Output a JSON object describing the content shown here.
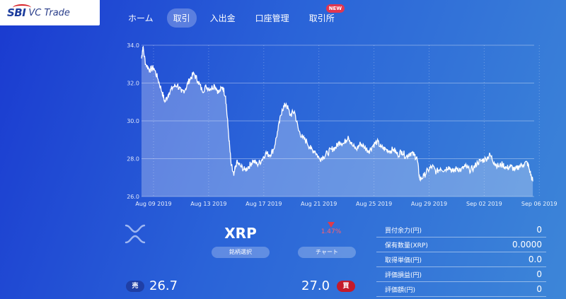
{
  "brand": {
    "sbi": "SBI",
    "vc": "VC Trade"
  },
  "nav": {
    "items": [
      {
        "label": "ホーム",
        "active": false
      },
      {
        "label": "取引",
        "active": true
      },
      {
        "label": "入出金",
        "active": false
      },
      {
        "label": "口座管理",
        "active": false
      },
      {
        "label": "取引所",
        "active": false,
        "badge": "NEW"
      }
    ]
  },
  "chart_data": {
    "type": "area",
    "x_labels": [
      "Aug 09 2019",
      "Aug 13 2019",
      "Aug 17 2019",
      "Aug 21 2019",
      "Aug 25 2019",
      "Aug 29 2019",
      "Sep 02 2019",
      "Sep 06 2019"
    ],
    "y_ticks": [
      "34.0",
      "32.0",
      "30.0",
      "28.0",
      "26.0"
    ],
    "ylim": [
      26,
      34
    ],
    "x_range_days": [
      0,
      28.5
    ],
    "points": [
      [
        0,
        33.3
      ],
      [
        0.1,
        33.9
      ],
      [
        0.3,
        33.0
      ],
      [
        0.6,
        32.7
      ],
      [
        0.9,
        32.8
      ],
      [
        1.2,
        32.2
      ],
      [
        1.5,
        31.5
      ],
      [
        1.7,
        31.0
      ],
      [
        2.0,
        31.5
      ],
      [
        2.3,
        31.8
      ],
      [
        2.6,
        31.9
      ],
      [
        2.9,
        31.5
      ],
      [
        3.2,
        31.7
      ],
      [
        3.5,
        32.2
      ],
      [
        3.8,
        32.5
      ],
      [
        4.1,
        32.1
      ],
      [
        4.4,
        31.6
      ],
      [
        4.7,
        31.8
      ],
      [
        5.0,
        31.7
      ],
      [
        5.3,
        31.9
      ],
      [
        5.6,
        31.5
      ],
      [
        5.9,
        31.8
      ],
      [
        6.1,
        31.3
      ],
      [
        6.3,
        29.5
      ],
      [
        6.5,
        27.7
      ],
      [
        6.7,
        27.1
      ],
      [
        6.9,
        27.8
      ],
      [
        7.2,
        27.6
      ],
      [
        7.5,
        27.4
      ],
      [
        7.8,
        27.6
      ],
      [
        8.1,
        27.9
      ],
      [
        8.4,
        27.7
      ],
      [
        8.7,
        27.9
      ],
      [
        9.0,
        28.3
      ],
      [
        9.3,
        28.2
      ],
      [
        9.6,
        28.5
      ],
      [
        9.9,
        29.5
      ],
      [
        10.2,
        30.6
      ],
      [
        10.5,
        30.9
      ],
      [
        10.8,
        30.3
      ],
      [
        11.1,
        30.5
      ],
      [
        11.4,
        29.5
      ],
      [
        11.7,
        29.1
      ],
      [
        12.0,
        28.9
      ],
      [
        12.3,
        28.5
      ],
      [
        12.6,
        28.4
      ],
      [
        12.9,
        28.0
      ],
      [
        13.2,
        28.1
      ],
      [
        13.5,
        28.3
      ],
      [
        13.8,
        28.5
      ],
      [
        14.1,
        28.6
      ],
      [
        14.4,
        28.9
      ],
      [
        14.7,
        28.8
      ],
      [
        15.0,
        29.2
      ],
      [
        15.3,
        28.7
      ],
      [
        15.6,
        28.5
      ],
      [
        15.9,
        28.8
      ],
      [
        16.2,
        28.6
      ],
      [
        16.5,
        28.4
      ],
      [
        16.8,
        28.7
      ],
      [
        17.1,
        28.9
      ],
      [
        17.4,
        28.6
      ],
      [
        17.7,
        28.5
      ],
      [
        18.0,
        28.4
      ],
      [
        18.3,
        28.5
      ],
      [
        18.6,
        28.2
      ],
      [
        18.9,
        28.4
      ],
      [
        19.2,
        28.1
      ],
      [
        19.5,
        28.3
      ],
      [
        19.8,
        28.2
      ],
      [
        20.0,
        28.0
      ],
      [
        20.2,
        26.9
      ],
      [
        20.5,
        27.1
      ],
      [
        20.8,
        27.4
      ],
      [
        21.1,
        27.6
      ],
      [
        21.4,
        27.3
      ],
      [
        21.7,
        27.5
      ],
      [
        22.0,
        27.4
      ],
      [
        22.3,
        27.6
      ],
      [
        22.6,
        27.3
      ],
      [
        22.9,
        27.5
      ],
      [
        23.2,
        27.4
      ],
      [
        23.5,
        27.6
      ],
      [
        23.8,
        27.4
      ],
      [
        24.1,
        27.5
      ],
      [
        24.4,
        27.8
      ],
      [
        24.7,
        27.9
      ],
      [
        25.0,
        28.0
      ],
      [
        25.3,
        28.2
      ],
      [
        25.6,
        27.8
      ],
      [
        25.9,
        27.6
      ],
      [
        26.2,
        27.7
      ],
      [
        26.5,
        27.5
      ],
      [
        26.8,
        27.6
      ],
      [
        27.1,
        27.4
      ],
      [
        27.4,
        27.6
      ],
      [
        27.7,
        27.7
      ],
      [
        28.0,
        27.8
      ],
      [
        28.2,
        27.3
      ],
      [
        28.4,
        26.8
      ]
    ]
  },
  "coin": {
    "symbol": "XRP",
    "icon": "xrp-icon"
  },
  "buttons": {
    "select_pair": "銘柄選択",
    "chart": "チャート"
  },
  "change": {
    "value": "1.47%",
    "direction": "down"
  },
  "prices": {
    "sell_label": "売",
    "sell_price": "26.7",
    "buy_label": "買",
    "buy_price": "27.0"
  },
  "account": {
    "rows": [
      {
        "label": "買付余力(円)",
        "value": "0"
      },
      {
        "label": "保有数量(XRP)",
        "value": "0.0000"
      },
      {
        "label": "取得単価(円)",
        "value": "0.0"
      },
      {
        "label": "評価損益(円)",
        "value": "0"
      },
      {
        "label": "評価額(円)",
        "value": "0"
      }
    ]
  },
  "colors": {
    "sell": "#1f3fa6",
    "buy": "#c41a2b",
    "down": "#e03a4a"
  }
}
